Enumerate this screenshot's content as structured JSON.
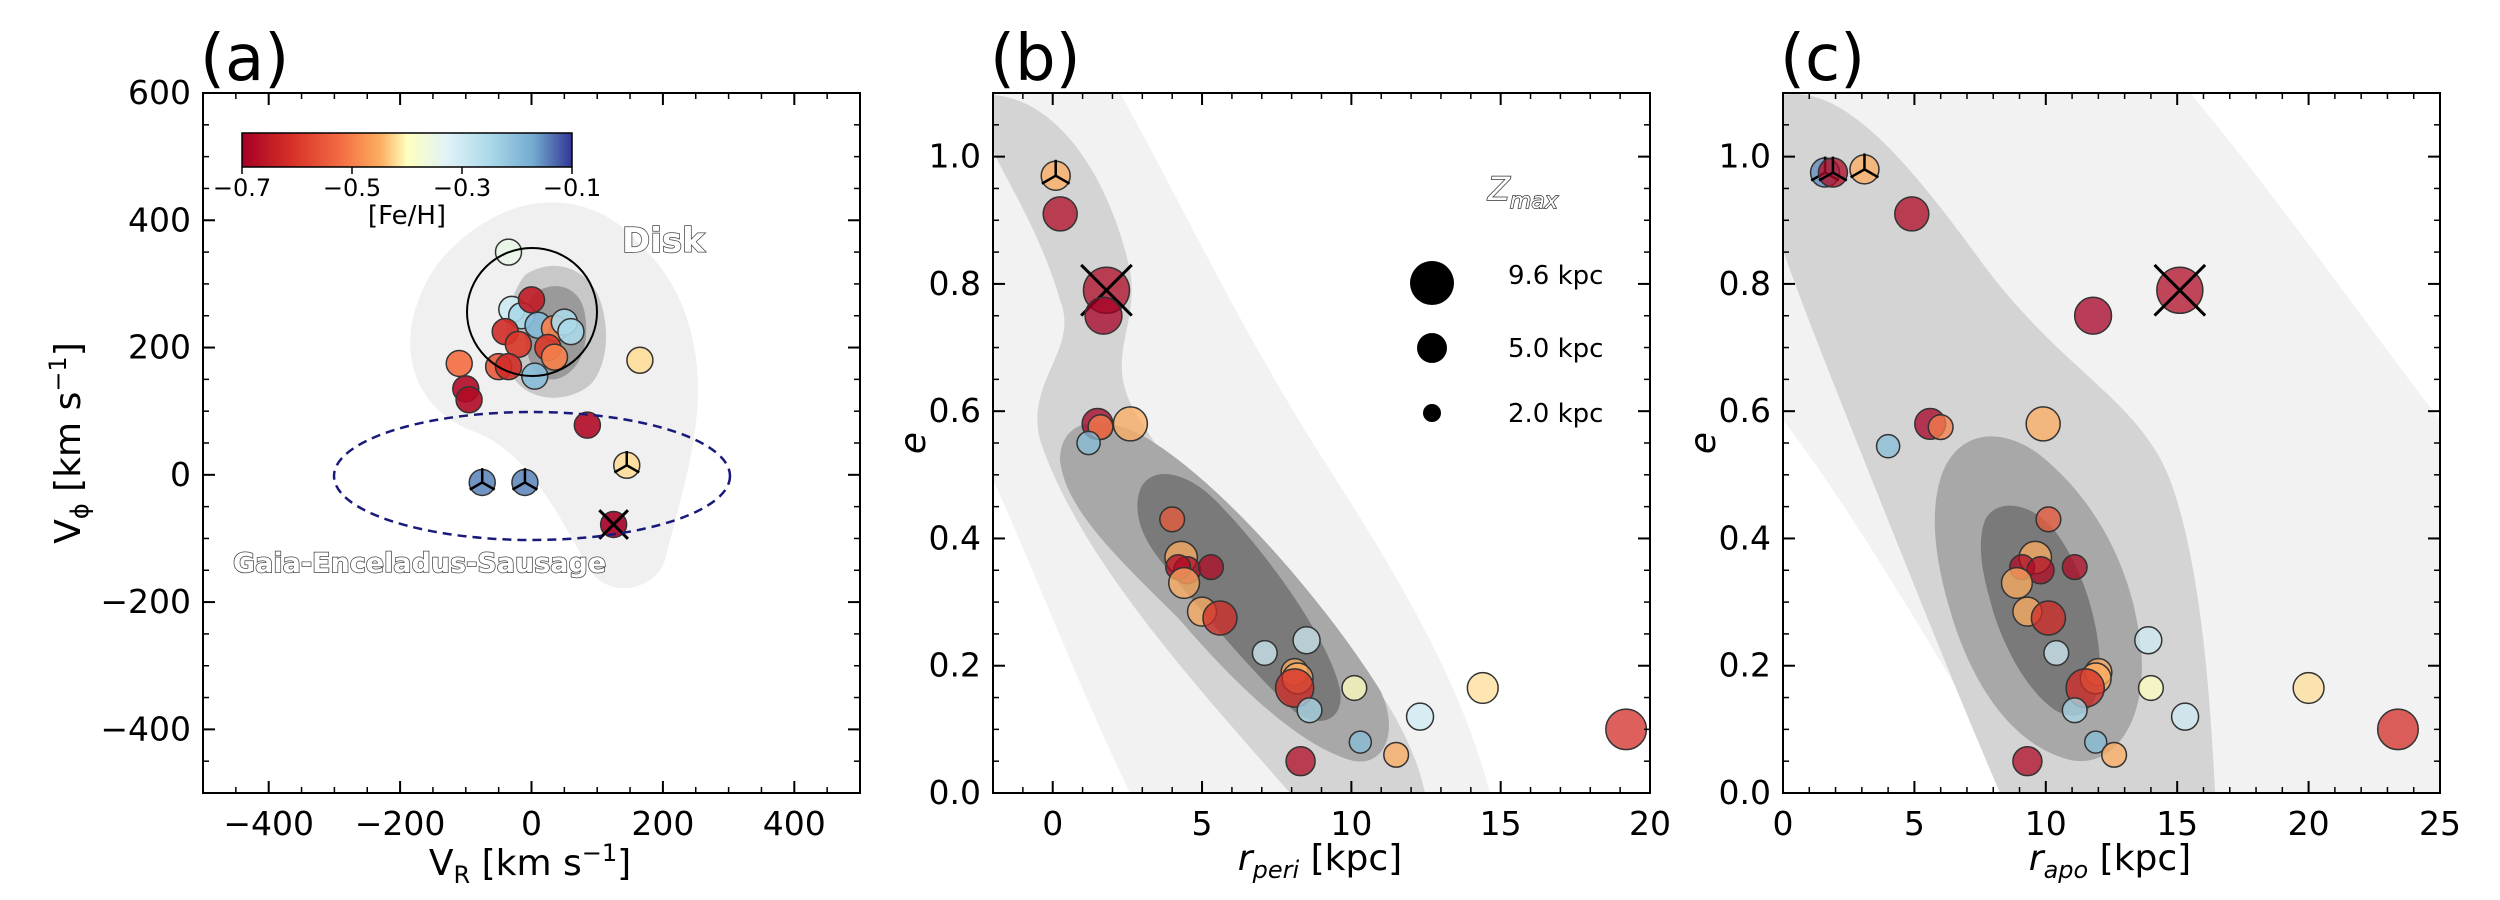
{
  "chart_data": [
    {
      "type": "scatter",
      "panel": "(a)",
      "xlabel": "V_R [km s^-1]",
      "ylabel": "V_phi [km s^-1]",
      "xlim": [
        -500,
        500
      ],
      "ylim": [
        -500,
        600
      ],
      "xticks": [
        "−400",
        "−200",
        "0",
        "200",
        "400"
      ],
      "yticks": [
        "600",
        "400",
        "200",
        "0",
        "−200",
        "−400"
      ],
      "colorbar": {
        "label": "[Fe/H]",
        "ticks": [
          "−0.7",
          "−0.5",
          "−0.3",
          "−0.1"
        ],
        "range": [
          -0.7,
          -0.1
        ]
      },
      "annotations": [
        "Disk",
        "Gaia-Enceladus-Sausage"
      ],
      "regions": {
        "disk_circle": {
          "center": [
            0,
            245
          ],
          "rx": 100,
          "ry": 145
        },
        "ges_ellipse": {
          "center": [
            0,
            5
          ],
          "rx": 300,
          "ry": 100
        }
      },
      "points": [
        {
          "x": -35,
          "y": 350,
          "feh": -0.35
        },
        {
          "x": -30,
          "y": 260,
          "feh": -0.3
        },
        {
          "x": -15,
          "y": 250,
          "feh": -0.25
        },
        {
          "x": 0,
          "y": 275,
          "feh": -0.65
        },
        {
          "x": -40,
          "y": 225,
          "feh": -0.62
        },
        {
          "x": 10,
          "y": 235,
          "feh": -0.2
        },
        {
          "x": 35,
          "y": 230,
          "feh": -0.5
        },
        {
          "x": 50,
          "y": 240,
          "feh": -0.25
        },
        {
          "x": 60,
          "y": 225,
          "feh": -0.25
        },
        {
          "x": -20,
          "y": 205,
          "feh": -0.6
        },
        {
          "x": 25,
          "y": 200,
          "feh": -0.6
        },
        {
          "x": 35,
          "y": 185,
          "feh": -0.5
        },
        {
          "x": -50,
          "y": 170,
          "feh": -0.55
        },
        {
          "x": -35,
          "y": 170,
          "feh": -0.62
        },
        {
          "x": 5,
          "y": 155,
          "feh": -0.2
        },
        {
          "x": -110,
          "y": 175,
          "feh": -0.52
        },
        {
          "x": 165,
          "y": 180,
          "feh": -0.42
        },
        {
          "x": -100,
          "y": 135,
          "feh": -0.68
        },
        {
          "x": -95,
          "y": 118,
          "feh": -0.68
        },
        {
          "x": 85,
          "y": 78,
          "feh": -0.68
        },
        {
          "x": -75,
          "y": -12,
          "feh": -0.15,
          "marker": "tri"
        },
        {
          "x": -10,
          "y": -12,
          "feh": -0.15,
          "marker": "tri"
        },
        {
          "x": 145,
          "y": 15,
          "feh": -0.42,
          "marker": "tri"
        },
        {
          "x": 125,
          "y": -78,
          "feh": -0.7,
          "marker": "x"
        }
      ]
    },
    {
      "type": "scatter",
      "panel": "(b)",
      "xlabel": "r_peri [kpc]",
      "ylabel": "e",
      "xlim": [
        -2,
        20
      ],
      "ylim": [
        0,
        1.1
      ],
      "xticks": [
        "0",
        "5",
        "10",
        "15",
        "20"
      ],
      "yticks": [
        "0.0",
        "0.2",
        "0.4",
        "0.6",
        "0.8",
        "1.0"
      ],
      "size_legend": {
        "title": "Z_max",
        "entries": [
          "9.6 kpc",
          "5.0 kpc",
          "2.0 kpc"
        ],
        "values": [
          9.6,
          5.0,
          2.0
        ]
      },
      "points": [
        {
          "x": 0.1,
          "y": 0.97,
          "z": 2.5,
          "feh": -0.45,
          "marker": "tri"
        },
        {
          "x": 0.25,
          "y": 0.91,
          "z": 4.0,
          "feh": -0.68
        },
        {
          "x": 1.8,
          "y": 0.79,
          "z": 9.0,
          "feh": -0.68,
          "marker": "x"
        },
        {
          "x": 1.7,
          "y": 0.75,
          "z": 5.0,
          "feh": -0.7
        },
        {
          "x": 1.5,
          "y": 0.58,
          "z": 3.0,
          "feh": -0.7
        },
        {
          "x": 1.6,
          "y": 0.575,
          "z": 1.5,
          "feh": -0.5
        },
        {
          "x": 2.6,
          "y": 0.58,
          "z": 4.0,
          "feh": -0.45
        },
        {
          "x": 1.2,
          "y": 0.55,
          "z": 1.2,
          "feh": -0.2
        },
        {
          "x": 4.0,
          "y": 0.43,
          "z": 1.5,
          "feh": -0.55
        },
        {
          "x": 4.3,
          "y": 0.37,
          "z": 3.5,
          "feh": -0.45
        },
        {
          "x": 4.5,
          "y": 0.35,
          "z": 2.0,
          "feh": -0.68
        },
        {
          "x": 4.2,
          "y": 0.355,
          "z": 1.5,
          "feh": -0.68
        },
        {
          "x": 5.3,
          "y": 0.355,
          "z": 1.5,
          "feh": -0.68
        },
        {
          "x": 4.4,
          "y": 0.33,
          "z": 3.0,
          "feh": -0.45
        },
        {
          "x": 5.0,
          "y": 0.285,
          "z": 2.5,
          "feh": -0.45
        },
        {
          "x": 5.6,
          "y": 0.275,
          "z": 4.0,
          "feh": -0.62
        },
        {
          "x": 7.1,
          "y": 0.22,
          "z": 1.5,
          "feh": -0.3
        },
        {
          "x": 8.5,
          "y": 0.24,
          "z": 2.0,
          "feh": -0.3
        },
        {
          "x": 8.1,
          "y": 0.19,
          "z": 2.0,
          "feh": -0.45
        },
        {
          "x": 8.2,
          "y": 0.18,
          "z": 3.0,
          "feh": -0.45
        },
        {
          "x": 8.1,
          "y": 0.165,
          "z": 5.5,
          "feh": -0.62
        },
        {
          "x": 8.6,
          "y": 0.13,
          "z": 1.5,
          "feh": -0.25
        },
        {
          "x": 10.1,
          "y": 0.165,
          "z": 1.5,
          "feh": -0.4
        },
        {
          "x": 10.3,
          "y": 0.08,
          "z": 1.0,
          "feh": -0.2
        },
        {
          "x": 8.3,
          "y": 0.05,
          "z": 2.5,
          "feh": -0.68
        },
        {
          "x": 11.5,
          "y": 0.06,
          "z": 1.5,
          "feh": -0.45
        },
        {
          "x": 12.3,
          "y": 0.12,
          "z": 2.0,
          "feh": -0.3
        },
        {
          "x": 14.4,
          "y": 0.165,
          "z": 3.0,
          "feh": -0.42
        },
        {
          "x": 19.2,
          "y": 0.1,
          "z": 6.5,
          "feh": -0.62
        }
      ]
    },
    {
      "type": "scatter",
      "panel": "(c)",
      "xlabel": "r_apo [kpc]",
      "ylabel": "e",
      "xlim": [
        0,
        25
      ],
      "ylim": [
        0,
        1.1
      ],
      "xticks": [
        "0",
        "5",
        "10",
        "15",
        "20",
        "25"
      ],
      "yticks": [
        "0.0",
        "0.2",
        "0.4",
        "0.6",
        "0.8",
        "1.0"
      ],
      "points": [
        {
          "x": 1.6,
          "y": 0.975,
          "z": 2.5,
          "feh": -0.15,
          "marker": "tri"
        },
        {
          "x": 1.9,
          "y": 0.975,
          "z": 2.5,
          "feh": -0.68,
          "marker": "tri"
        },
        {
          "x": 3.1,
          "y": 0.98,
          "z": 2.5,
          "feh": -0.45,
          "marker": "tri"
        },
        {
          "x": 4.9,
          "y": 0.91,
          "z": 4.0,
          "feh": -0.68
        },
        {
          "x": 15.1,
          "y": 0.79,
          "z": 9.0,
          "feh": -0.68,
          "marker": "x"
        },
        {
          "x": 11.8,
          "y": 0.75,
          "z": 5.0,
          "feh": -0.7
        },
        {
          "x": 4.0,
          "y": 0.545,
          "z": 1.2,
          "feh": -0.2
        },
        {
          "x": 5.6,
          "y": 0.58,
          "z": 3.0,
          "feh": -0.7
        },
        {
          "x": 6.0,
          "y": 0.575,
          "z": 1.5,
          "feh": -0.5
        },
        {
          "x": 9.9,
          "y": 0.58,
          "z": 4.0,
          "feh": -0.45
        },
        {
          "x": 10.1,
          "y": 0.43,
          "z": 1.5,
          "feh": -0.55
        },
        {
          "x": 9.6,
          "y": 0.37,
          "z": 3.5,
          "feh": -0.45
        },
        {
          "x": 9.1,
          "y": 0.355,
          "z": 1.5,
          "feh": -0.68
        },
        {
          "x": 9.8,
          "y": 0.35,
          "z": 2.0,
          "feh": -0.68
        },
        {
          "x": 11.1,
          "y": 0.355,
          "z": 1.5,
          "feh": -0.68
        },
        {
          "x": 8.9,
          "y": 0.33,
          "z": 3.0,
          "feh": -0.45
        },
        {
          "x": 9.3,
          "y": 0.285,
          "z": 2.5,
          "feh": -0.45
        },
        {
          "x": 10.1,
          "y": 0.275,
          "z": 4.0,
          "feh": -0.62
        },
        {
          "x": 10.4,
          "y": 0.22,
          "z": 1.5,
          "feh": -0.3
        },
        {
          "x": 13.9,
          "y": 0.24,
          "z": 2.0,
          "feh": -0.3
        },
        {
          "x": 12.0,
          "y": 0.19,
          "z": 2.0,
          "feh": -0.45
        },
        {
          "x": 11.9,
          "y": 0.18,
          "z": 3.0,
          "feh": -0.45
        },
        {
          "x": 11.5,
          "y": 0.165,
          "z": 5.5,
          "feh": -0.62
        },
        {
          "x": 11.1,
          "y": 0.13,
          "z": 1.5,
          "feh": -0.25
        },
        {
          "x": 14.0,
          "y": 0.165,
          "z": 1.5,
          "feh": -0.4
        },
        {
          "x": 11.9,
          "y": 0.08,
          "z": 1.0,
          "feh": -0.2
        },
        {
          "x": 9.3,
          "y": 0.05,
          "z": 2.5,
          "feh": -0.68
        },
        {
          "x": 12.6,
          "y": 0.06,
          "z": 1.5,
          "feh": -0.45
        },
        {
          "x": 15.3,
          "y": 0.12,
          "z": 2.0,
          "feh": -0.3
        },
        {
          "x": 20.0,
          "y": 0.165,
          "z": 3.0,
          "feh": -0.42
        },
        {
          "x": 23.4,
          "y": 0.1,
          "z": 6.5,
          "feh": -0.62
        }
      ]
    }
  ]
}
